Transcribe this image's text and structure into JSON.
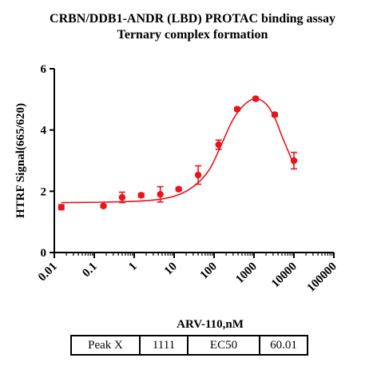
{
  "title": "CRBN/DDB1-ANDR (LBD)  PROTAC binding assay",
  "subtitle": "Ternary complex formation",
  "chart_data": {
    "type": "scatter",
    "xlabel": "ARV-110,nM",
    "ylabel": "HTRF Signal(665/620)",
    "xscale": "log",
    "xlim": [
      0.01,
      100000
    ],
    "ylim": [
      0,
      6
    ],
    "xticks": [
      "0.01",
      "0.1",
      "1",
      "10",
      "100",
      "1000",
      "10000",
      "100000"
    ],
    "yticks": [
      "0",
      "2",
      "4",
      "6"
    ],
    "grid": false,
    "color": "#e8141b",
    "points": [
      {
        "x": 0.015,
        "y": 1.48,
        "err": 0.08
      },
      {
        "x": 0.17,
        "y": 1.52,
        "err": 0.04
      },
      {
        "x": 0.5,
        "y": 1.8,
        "err": 0.17
      },
      {
        "x": 1.5,
        "y": 1.87,
        "err": 0.06
      },
      {
        "x": 4.5,
        "y": 1.9,
        "err": 0.25
      },
      {
        "x": 13,
        "y": 2.07,
        "err": 0.05
      },
      {
        "x": 40,
        "y": 2.53,
        "err": 0.3
      },
      {
        "x": 130,
        "y": 3.52,
        "err": 0.15
      },
      {
        "x": 380,
        "y": 4.68,
        "err": 0.05
      },
      {
        "x": 1100,
        "y": 5.02,
        "err": 0.05
      },
      {
        "x": 3300,
        "y": 4.5,
        "err": 0.06
      },
      {
        "x": 10000,
        "y": 3.0,
        "err": 0.27
      }
    ],
    "fit": {
      "x": [
        0.015,
        0.1,
        1,
        5,
        15,
        40,
        80,
        150,
        300,
        600,
        1100,
        2000,
        3300,
        5000,
        7500,
        10000
      ],
      "y": [
        1.63,
        1.64,
        1.67,
        1.75,
        1.92,
        2.28,
        2.75,
        3.5,
        4.35,
        4.85,
        5.02,
        4.85,
        4.4,
        3.8,
        3.25,
        2.85
      ]
    }
  },
  "stats": {
    "peak_label": "Peak X",
    "peak_value": "1111",
    "ec50_label": "EC50",
    "ec50_value": "60.01"
  }
}
